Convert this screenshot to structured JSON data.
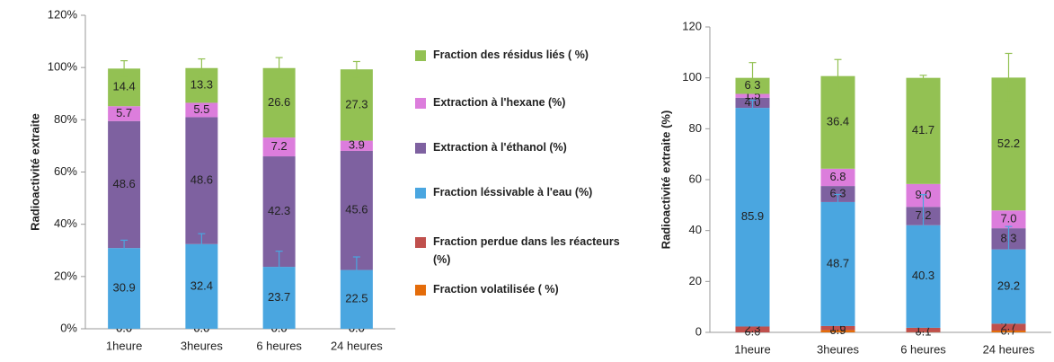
{
  "chart_data": [
    {
      "type": "stacked_bar",
      "y_label": "Radioactivité extraite",
      "categories": [
        "1heure",
        "3heures",
        "6 heures",
        "24 heures"
      ],
      "ylim": [
        0,
        120
      ],
      "yticks": [
        {
          "value": 0,
          "label": "0%"
        },
        {
          "value": 20,
          "label": "20%"
        },
        {
          "value": 40,
          "label": "40%"
        },
        {
          "value": 60,
          "label": "60%"
        },
        {
          "value": 80,
          "label": "80%"
        },
        {
          "value": 100,
          "label": "100%"
        },
        {
          "value": 120,
          "label": "120%"
        }
      ],
      "grid": false,
      "series": [
        {
          "name": "Fraction volatilisée  ( %)",
          "color": "#e46c0a",
          "values": [
            0,
            0,
            0,
            0
          ],
          "value_labels": [
            "0.0",
            "0.0",
            "0.0",
            "0.0"
          ]
        },
        {
          "name": "Fraction perdue dans les réacteurs (%)",
          "color": "#c0504d",
          "values": [
            0,
            0,
            0,
            0
          ],
          "value_labels": [
            "0.0",
            "0.0",
            "0.0",
            "0.0"
          ]
        },
        {
          "name": "Fraction léssivable à l'eau (%)",
          "color": "#4aa6e0",
          "values": [
            30.9,
            32.4,
            23.7,
            22.5
          ],
          "value_labels": [
            "30.9",
            "32.4",
            "23.7",
            "22.5"
          ],
          "errors": [
            3,
            4,
            6,
            5
          ]
        },
        {
          "name": "Extraction à l'éthanol (%)",
          "color": "#7e61a0",
          "values": [
            48.6,
            48.6,
            42.3,
            45.6
          ],
          "value_labels": [
            "48.6",
            "48.6",
            "42.3",
            "45.6"
          ]
        },
        {
          "name": "Extraction à l'hexane (%)",
          "color": "#dc7ddc",
          "values": [
            5.7,
            5.5,
            7.2,
            3.9
          ],
          "value_labels": [
            "5.7",
            "5.5",
            "7.2",
            "3.9"
          ]
        },
        {
          "name": "Fraction des résidus liés  ( %)",
          "color": "#93c153",
          "values": [
            14.4,
            13.3,
            26.6,
            27.3
          ],
          "value_labels": [
            "14.4",
            "13.3",
            "26.6",
            "27.3"
          ],
          "errors": [
            3,
            3.5,
            4,
            3
          ]
        }
      ]
    },
    {
      "type": "stacked_bar",
      "y_label": "Radioactivité extraite (%)",
      "categories": [
        "1heure",
        "3heures",
        "6 heures",
        "24 heures"
      ],
      "ylim": [
        0,
        120
      ],
      "yticks": [
        0,
        20,
        40,
        60,
        80,
        100,
        120
      ],
      "grid": false,
      "series": [
        {
          "color": "#e46c0a",
          "values": [
            0,
            0.9,
            0.1,
            0.7
          ],
          "value_labels": [
            "0.0",
            "0.9",
            "0.1",
            "0.7"
          ]
        },
        {
          "color": "#c0504d",
          "values": [
            2.3,
            1.6,
            1.7,
            2.7
          ],
          "value_labels": [
            "2.3",
            "1.6",
            "1.7",
            "2.7"
          ]
        },
        {
          "color": "#4aa6e0",
          "values": [
            85.9,
            48.7,
            40.3,
            29.2
          ],
          "value_labels": [
            "85.9",
            "48.7",
            "40.3",
            "29.2"
          ],
          "errors": [
            3,
            3,
            12,
            9
          ]
        },
        {
          "color": "#7e61a0",
          "values": [
            4.0,
            6.3,
            7.2,
            8.3
          ],
          "value_labels": [
            "4.0",
            "6.3",
            "7.2",
            "8.3"
          ]
        },
        {
          "color": "#dc7ddc",
          "values": [
            1.5,
            6.8,
            9.0,
            7.0
          ],
          "value_labels": [
            "1.5",
            "6.8",
            "9.0",
            "7.0"
          ]
        },
        {
          "color": "#93c153",
          "values": [
            6.3,
            36.4,
            41.7,
            52.2
          ],
          "value_labels": [
            "6.3",
            "36.4",
            "41.7",
            "52.2"
          ],
          "errors": [
            6,
            6.5,
            1,
            9.5
          ]
        }
      ]
    }
  ]
}
